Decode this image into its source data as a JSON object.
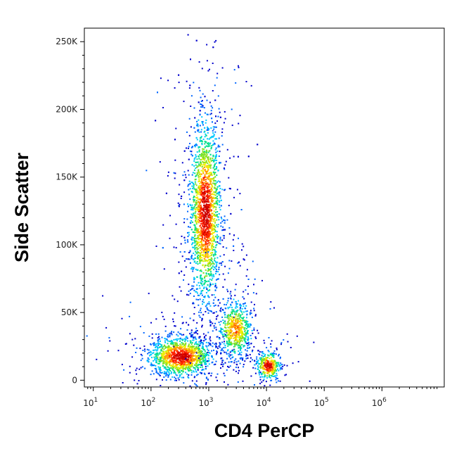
{
  "chart_data": {
    "type": "scatter",
    "subtype": "flow-cytometry-density-dot-plot",
    "title": "",
    "xlabel": "CD4 PerCP",
    "ylabel": "Side Scatter",
    "x_scale": "log",
    "xlim": [
      7,
      12000000
    ],
    "ylim": [
      -5000,
      260000
    ],
    "x_ticks": [
      {
        "value": 10,
        "base": "10",
        "exp": "1"
      },
      {
        "value": 100,
        "base": "10",
        "exp": "2"
      },
      {
        "value": 1000,
        "base": "10",
        "exp": "3"
      },
      {
        "value": 10000,
        "base": "10",
        "exp": "4"
      },
      {
        "value": 100000,
        "base": "10",
        "exp": "5"
      },
      {
        "value": 1000000,
        "base": "10",
        "exp": "6"
      }
    ],
    "y_ticks": [
      {
        "value": 0,
        "label": "0"
      },
      {
        "value": 50000,
        "label": "50K"
      },
      {
        "value": 100000,
        "label": "100K"
      },
      {
        "value": 150000,
        "label": "150K"
      },
      {
        "value": 200000,
        "label": "200K"
      },
      {
        "value": 250000,
        "label": "250K"
      }
    ],
    "grid": false,
    "legend": "none",
    "colormap": [
      "#0000cc",
      "#0066ff",
      "#00c8ff",
      "#00e08a",
      "#80e020",
      "#f0f000",
      "#ff9900",
      "#ff2200",
      "#cc0000"
    ],
    "populations": [
      {
        "x_center": 320,
        "y_center": 18000,
        "x_spread_decades": 0.26,
        "y_spread": 7000,
        "count": 1400,
        "peak_density": 1.0
      },
      {
        "x_center": 850,
        "y_center": 125000,
        "x_spread_decades": 0.13,
        "y_spread": 32000,
        "count": 2600,
        "peak_density": 1.0
      },
      {
        "x_center": 2800,
        "y_center": 38000,
        "x_spread_decades": 0.14,
        "y_spread": 10000,
        "count": 650,
        "peak_density": 0.75
      },
      {
        "x_center": 10500,
        "y_center": 11000,
        "x_spread_decades": 0.1,
        "y_spread": 5000,
        "count": 380,
        "peak_density": 1.0
      }
    ]
  }
}
